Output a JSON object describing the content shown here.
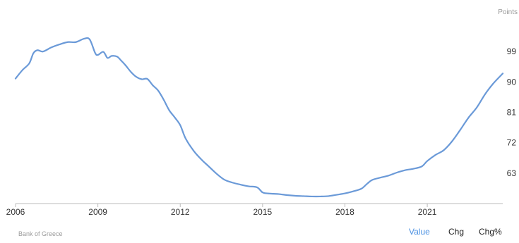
{
  "chart_data": {
    "type": "line",
    "unit_label": "Points",
    "y_ticks": [
      63,
      72,
      81,
      90,
      99
    ],
    "x_ticks": [
      "2006",
      "2009",
      "2012",
      "2015",
      "2018",
      "2021"
    ],
    "ylim": [
      54,
      108
    ],
    "xlim": [
      2006.0,
      2023.75
    ],
    "grid": false,
    "line_color": "#6b9ad8",
    "series": [
      {
        "x": [
          2006.0,
          2006.25,
          2006.5,
          2006.65,
          2006.8,
          2007.0,
          2007.3,
          2007.6,
          2007.9,
          2008.2,
          2008.5,
          2008.7,
          2008.9,
          2009.0,
          2009.2,
          2009.35,
          2009.5,
          2009.7,
          2009.85,
          2010.0,
          2010.2,
          2010.4,
          2010.6,
          2010.8,
          2011.0,
          2011.2,
          2011.4,
          2011.6,
          2011.8,
          2012.0,
          2012.2,
          2012.5,
          2012.8,
          2013.0,
          2013.3,
          2013.6,
          2013.9,
          2014.2,
          2014.5,
          2014.8,
          2015.0,
          2015.2,
          2015.4,
          2015.6,
          2015.9,
          2016.2,
          2016.5,
          2016.8,
          2017.1,
          2017.4,
          2017.7,
          2018.0,
          2018.3,
          2018.6,
          2018.8,
          2019.0,
          2019.3,
          2019.6,
          2019.9,
          2020.2,
          2020.5,
          2020.8,
          2021.0,
          2021.3,
          2021.6,
          2021.9,
          2022.2,
          2022.5,
          2022.8,
          2023.1,
          2023.4,
          2023.75
        ],
        "values": [
          91.0,
          93.5,
          95.5,
          98.5,
          99.4,
          99.0,
          100.2,
          101.1,
          101.8,
          101.8,
          102.8,
          102.6,
          98.6,
          98.0,
          98.9,
          97.1,
          97.7,
          97.5,
          96.3,
          95.0,
          93.0,
          91.5,
          90.8,
          90.9,
          89.0,
          87.4,
          84.7,
          81.6,
          79.5,
          77.2,
          73.2,
          69.5,
          66.8,
          65.3,
          63.0,
          61.1,
          60.2,
          59.6,
          59.1,
          58.8,
          57.3,
          57.0,
          56.9,
          56.8,
          56.5,
          56.3,
          56.2,
          56.1,
          56.1,
          56.2,
          56.6,
          57.0,
          57.6,
          58.4,
          59.8,
          61.0,
          61.7,
          62.3,
          63.2,
          63.9,
          64.3,
          65.0,
          66.6,
          68.4,
          69.8,
          72.4,
          75.8,
          79.4,
          82.4,
          86.3,
          89.5,
          92.5
        ]
      }
    ]
  },
  "footer": {
    "source": "Bank of Greece",
    "buttons": {
      "value": "Value",
      "chg": "Chg",
      "chg_pct": "Chg%"
    }
  }
}
